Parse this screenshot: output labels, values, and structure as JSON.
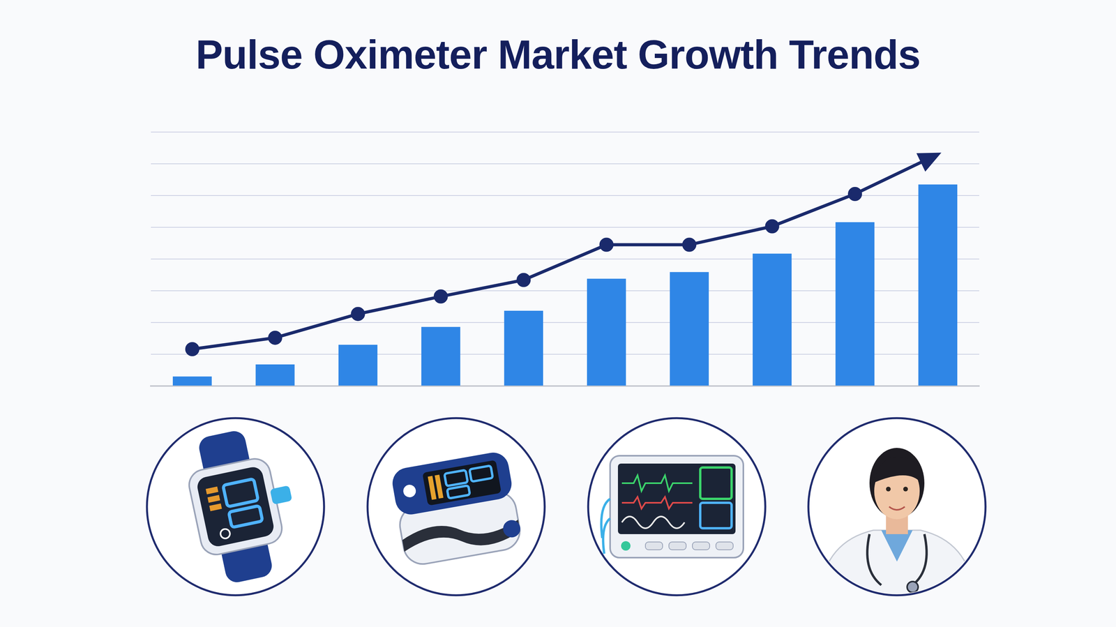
{
  "chart_data": {
    "type": "bar",
    "title": "Pulse Oximeter Market Growth Trends",
    "categories": [
      null,
      null,
      null,
      null,
      null,
      null,
      null,
      null,
      null,
      null
    ],
    "series": [
      {
        "type": "bar",
        "color": "#2f86e6",
        "values": [
          0.3,
          0.68,
          1.3,
          1.86,
          2.37,
          3.38,
          3.59,
          4.17,
          5.16,
          6.35
        ]
      },
      {
        "type": "line",
        "color": "#1a2a6c",
        "marker": "circle",
        "values": [
          1.16,
          1.52,
          2.27,
          2.82,
          3.34,
          4.45,
          4.45,
          5.03,
          6.05,
          7.3
        ]
      }
    ],
    "ylim": [
      0,
      8
    ],
    "yticks": [
      0,
      1,
      2,
      3,
      4,
      5,
      6,
      7,
      8
    ],
    "grid": true,
    "tick_labels": false
  }
}
